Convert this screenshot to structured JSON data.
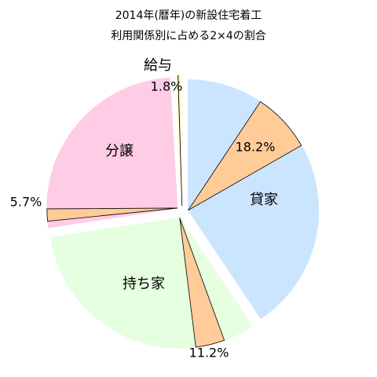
{
  "chart_data": {
    "type": "pie",
    "title": "2014年(暦年)の新設住宅着工",
    "subtitle": "利用関係別に占める2×4の割合",
    "categories": [
      "貸家",
      "持ち家",
      "分譲",
      "給与"
    ],
    "values": [
      40.6,
      32.0,
      26.5,
      0.9
    ],
    "colors": [
      "#cce5ff",
      "#e5ffe0",
      "#ffcce5",
      "#ffffdd"
    ],
    "sub_values": [
      18.2,
      11.2,
      5.7,
      1.8
    ],
    "sub_value_labels": [
      "18.2%",
      "11.2%",
      "5.7%",
      "1.8%"
    ],
    "sub_color": "#ffcc99"
  }
}
